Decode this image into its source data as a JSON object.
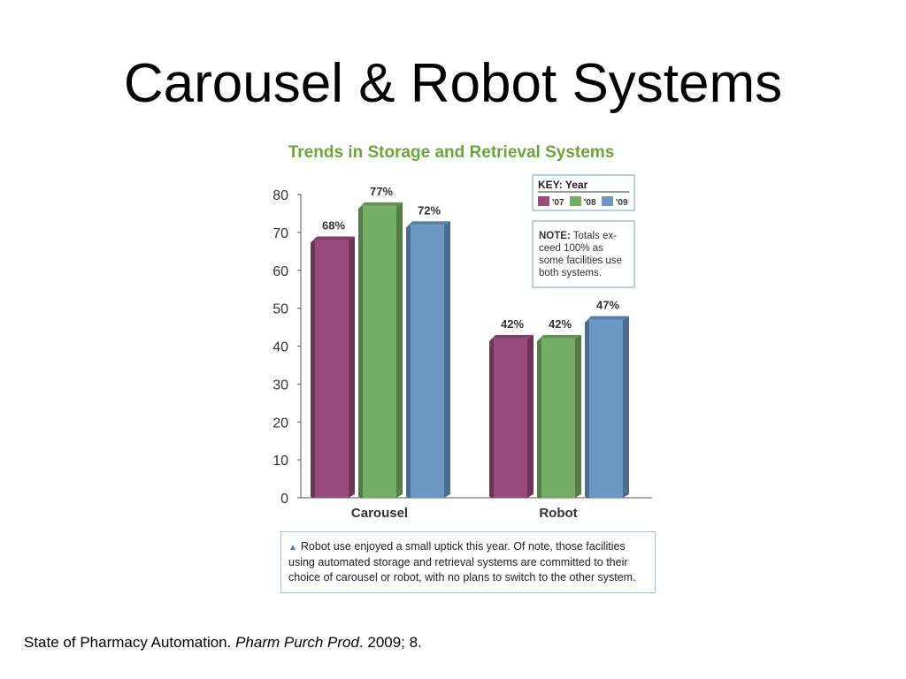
{
  "slide": {
    "title": "Carousel & Robot Systems",
    "citation": {
      "prefix": "State of Pharmacy Automation. ",
      "journal": "Pharm Purch Prod",
      "suffix": ". 2009; 8."
    }
  },
  "chart_data": {
    "type": "bar",
    "title": "Trends in Storage and Retrieval Systems",
    "categories": [
      "Carousel",
      "Robot"
    ],
    "series": [
      {
        "name": "'07",
        "values": [
          68,
          42
        ],
        "labels": [
          "68%",
          "42%"
        ],
        "color": "#984b7c"
      },
      {
        "name": "'08",
        "values": [
          77,
          42
        ],
        "labels": [
          "77%",
          "42%"
        ],
        "color": "#74ad63"
      },
      {
        "name": "'09",
        "values": [
          72,
          47
        ],
        "labels": [
          "72%",
          "47%"
        ],
        "color": "#6a97c4"
      }
    ],
    "ylim": [
      0,
      80
    ],
    "yticks": [
      "0",
      "10",
      "20",
      "30",
      "40",
      "50",
      "60",
      "70",
      "80"
    ],
    "grid": false,
    "legend": {
      "title": "KEY: Year",
      "placement": "top-right"
    },
    "note": {
      "bold": "NOTE:",
      "lines": [
        " Totals ex-",
        "ceed 100% as",
        "some facilities use",
        "both systems."
      ]
    },
    "caption": "Robot use enjoyed a small uptick this year. Of note, those facilities using automated storage and retrieval systems are committed to their choice of carousel or robot, with no plans to switch to the other system.",
    "title_color": "#6aa63a"
  }
}
